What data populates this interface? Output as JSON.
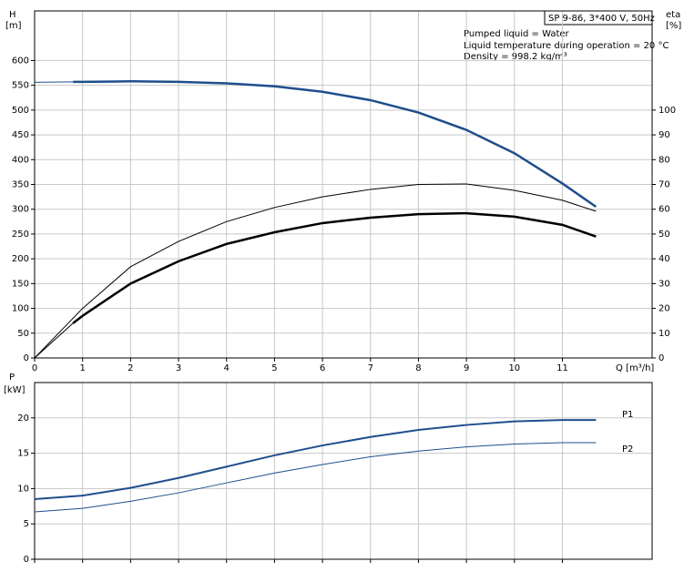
{
  "chart_data": [
    {
      "type": "line",
      "y_label": "H",
      "y_unit": "[m]",
      "y2_label": "eta",
      "y2_unit": "[%]",
      "x_label": "Q [m³/h]",
      "box_title": "SP 9-86, 3*400 V, 50Hz",
      "annotations": [
        "Pumped liquid = Water",
        "Liquid temperature during operation = 20 °C",
        "Density = 998.2 kg/m³"
      ],
      "xlim": [
        0,
        12.87
      ],
      "xticks": [
        0,
        1,
        2,
        3,
        4,
        5,
        6,
        7,
        8,
        9,
        10,
        11
      ],
      "ylim": [
        0,
        700
      ],
      "yticks": [
        0,
        50,
        100,
        150,
        200,
        250,
        300,
        350,
        400,
        450,
        500,
        550,
        600
      ],
      "y2lim": [
        0,
        140
      ],
      "y2ticks": [
        0,
        10,
        20,
        30,
        40,
        50,
        60,
        70,
        80,
        90,
        100
      ],
      "grid": true,
      "series": [
        {
          "color": "#1f4e8c",
          "width": 1,
          "x": [
            0,
            0.8
          ],
          "values": [
            556,
            557
          ]
        },
        {
          "color": "#1f4e8c",
          "width": 2.5,
          "x": [
            0.8,
            1,
            2,
            3,
            4,
            5,
            6,
            7,
            8,
            9,
            10,
            11,
            11.7
          ],
          "values": [
            557,
            557,
            558,
            557,
            554,
            548,
            537,
            520,
            495,
            460,
            413,
            352,
            305
          ]
        },
        {
          "color": "#000000",
          "width": 1,
          "axis": "y2",
          "x": [
            0,
            1,
            2,
            3,
            4,
            5,
            6,
            7,
            8,
            9,
            10,
            11,
            11.7
          ],
          "values": [
            0,
            20,
            36.8,
            47,
            55,
            60.7,
            65,
            68,
            70,
            70.2,
            67.6,
            63.6,
            59.2
          ]
        },
        {
          "color": "#000000",
          "width": 1,
          "axis": "y2",
          "x": [
            0,
            0.8
          ],
          "values": [
            0,
            14
          ]
        },
        {
          "color": "#000000",
          "width": 2.5,
          "axis": "y2",
          "x": [
            0.8,
            1,
            2,
            3,
            4,
            5,
            6,
            7,
            8,
            9,
            10,
            11,
            11.7
          ],
          "values": [
            14,
            17,
            30,
            39,
            46,
            50.7,
            54.4,
            56.6,
            58,
            58.4,
            57,
            53.7,
            49
          ]
        }
      ]
    },
    {
      "type": "line",
      "y_label": "P",
      "y_unit": "[kW]",
      "ylim": [
        0,
        25
      ],
      "yticks": [
        0,
        5,
        10,
        15,
        20
      ],
      "grid": true,
      "series": [
        {
          "name": "P1",
          "color": "#1f4e8c",
          "width": 2,
          "x": [
            0,
            1,
            2,
            3,
            4,
            5,
            6,
            7,
            8,
            9,
            10,
            11,
            11.7
          ],
          "values": [
            8.5,
            9,
            10.1,
            11.5,
            13.1,
            14.7,
            16.1,
            17.3,
            18.3,
            19,
            19.5,
            19.7,
            19.7
          ]
        },
        {
          "name": "P2",
          "color": "#1f4e8c",
          "width": 1,
          "x": [
            0,
            1,
            2,
            3,
            4,
            5,
            6,
            7,
            8,
            9,
            10,
            11,
            11.7
          ],
          "values": [
            6.7,
            7.2,
            8.2,
            9.4,
            10.8,
            12.2,
            13.4,
            14.5,
            15.3,
            15.9,
            16.3,
            16.5,
            16.5
          ]
        }
      ]
    }
  ]
}
